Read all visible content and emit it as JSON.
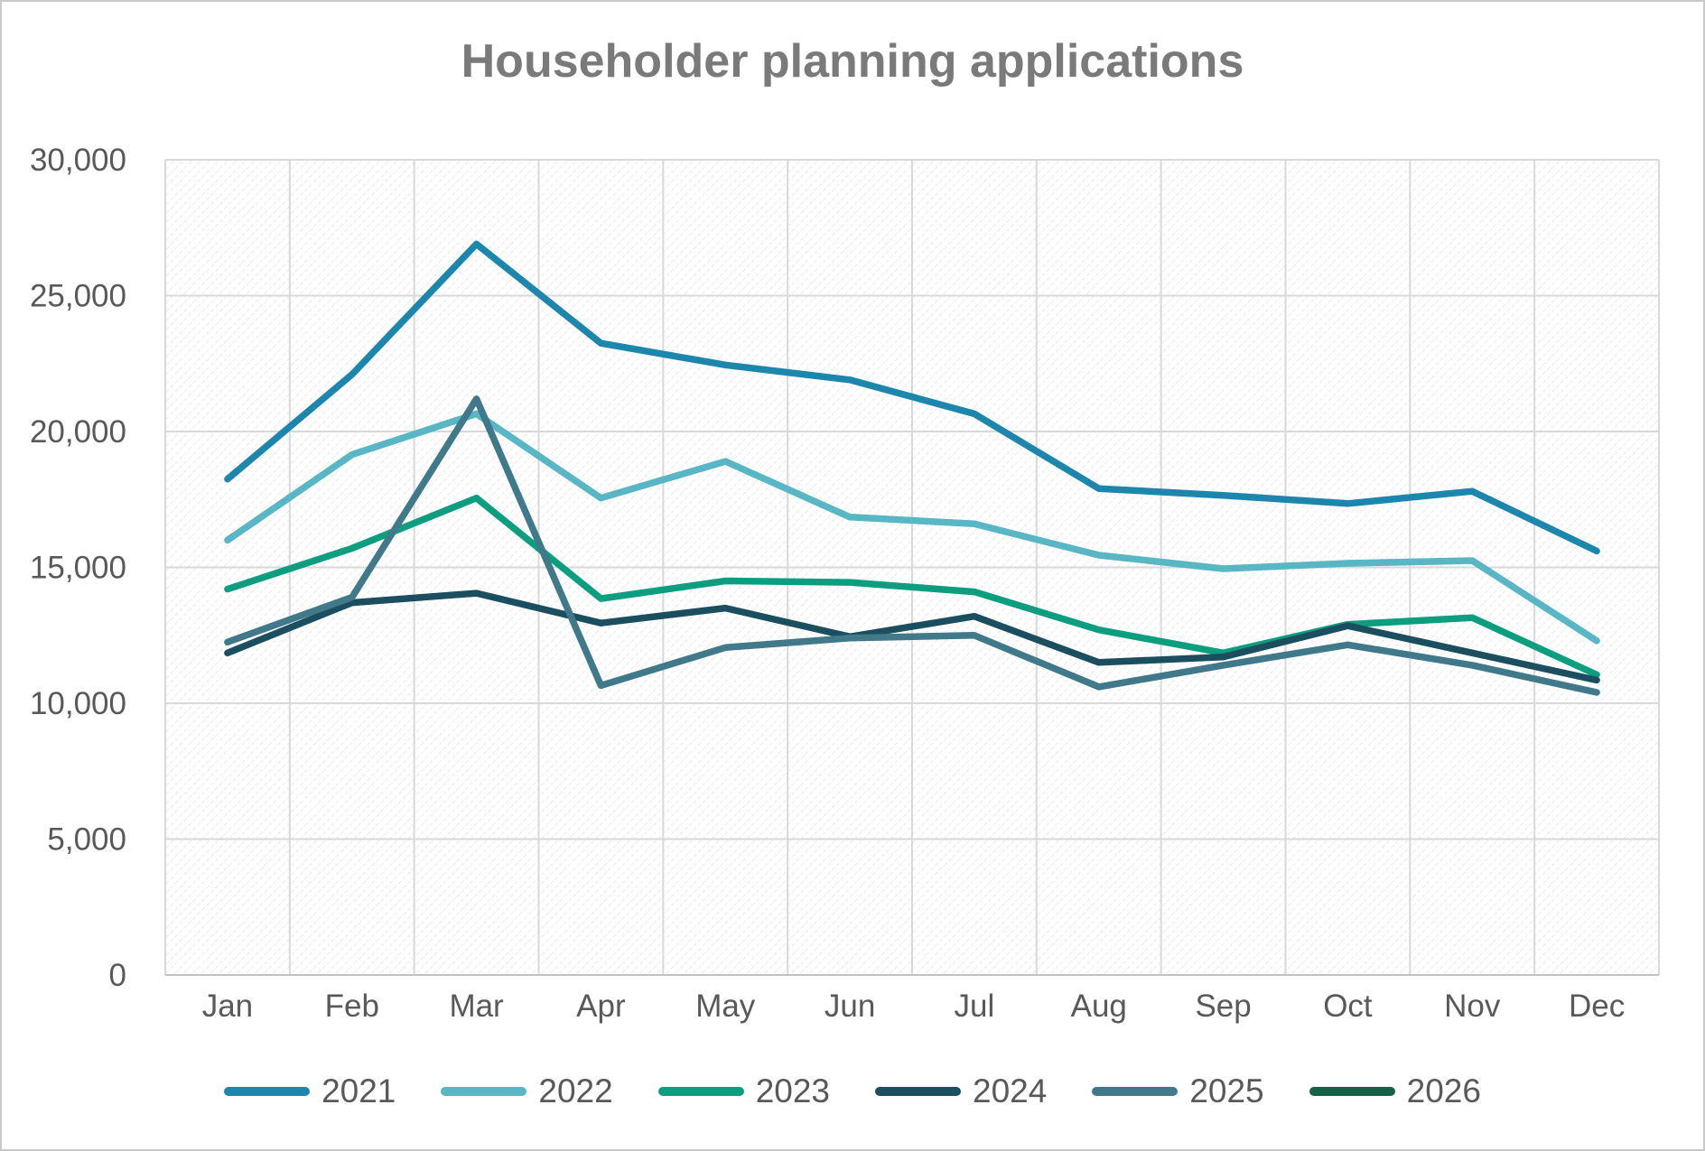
{
  "title": "Householder planning applications",
  "chart_data": {
    "type": "line",
    "title": "Householder planning applications",
    "categories": [
      "Jan",
      "Feb",
      "Mar",
      "Apr",
      "May",
      "Jun",
      "Jul",
      "Aug",
      "Sep",
      "Oct",
      "Nov",
      "Dec"
    ],
    "series": [
      {
        "name": "2021",
        "color": "#1d86ad",
        "values": [
          18250,
          22100,
          26900,
          23250,
          22450,
          21900,
          20650,
          17900,
          17650,
          17350,
          17800,
          15600
        ]
      },
      {
        "name": "2022",
        "color": "#58b6c5",
        "values": [
          16000,
          19150,
          20650,
          17550,
          18900,
          16850,
          16600,
          15450,
          14950,
          15150,
          15250,
          12300
        ]
      },
      {
        "name": "2023",
        "color": "#0d9e80",
        "values": [
          14200,
          15700,
          17550,
          13850,
          14500,
          14450,
          14100,
          12700,
          11850,
          12900,
          13150,
          11050
        ]
      },
      {
        "name": "2024",
        "color": "#1b4e5e",
        "values": [
          11850,
          13700,
          14050,
          12950,
          13500,
          12450,
          13200,
          11500,
          11700,
          12850,
          11850,
          10850
        ]
      },
      {
        "name": "2025",
        "color": "#40798a",
        "values": [
          12250,
          13900,
          21200,
          10650,
          12050,
          12400,
          12500,
          10600,
          11400,
          12150,
          11400,
          10400
        ]
      },
      {
        "name": "2026",
        "color": "#156049",
        "values": []
      }
    ],
    "ylim": [
      0,
      30000
    ],
    "ytick_step": 5000,
    "ytick_labels": [
      "0",
      "5,000",
      "10,000",
      "15,000",
      "20,000",
      "25,000",
      "30,000"
    ],
    "xlabel": "",
    "ylabel": "",
    "grid": true,
    "legend_position": "bottom",
    "plot_background": "diagonal-hatch"
  },
  "colors": {
    "grid": "#d9d9d9",
    "axis_bottom": "#c3c3c3",
    "hatch": "#e2e2e2",
    "axis_text": "#595959",
    "title_text": "#7a7a7a"
  }
}
